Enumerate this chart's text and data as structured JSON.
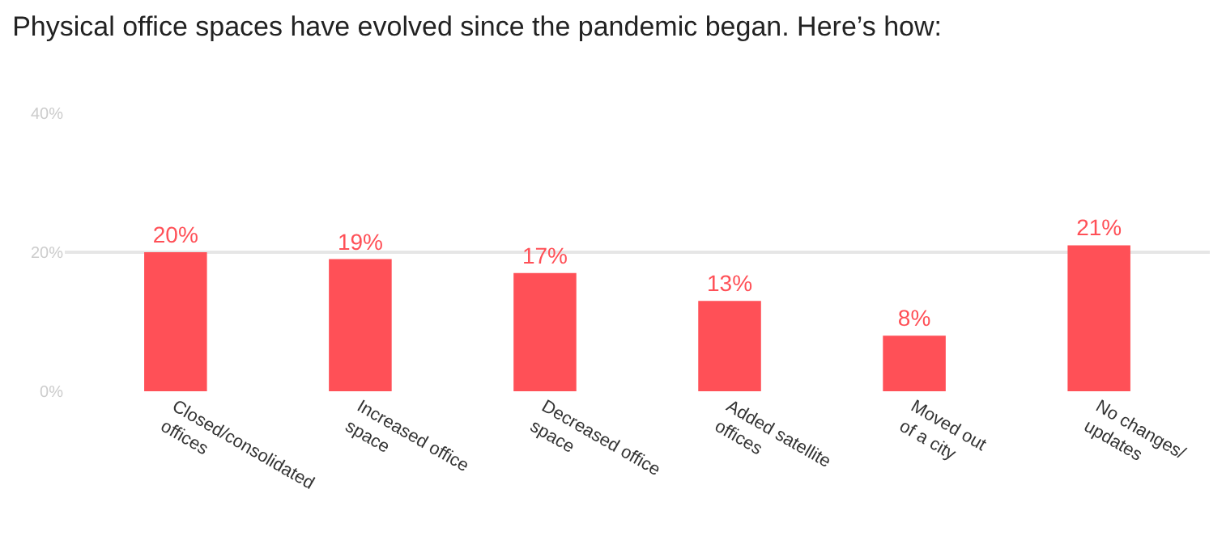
{
  "chart_data": {
    "type": "bar",
    "title": "Physical office spaces have evolved since the pandemic began. Here’s how:",
    "categories": [
      "Closed/consolidated\noffices",
      "Increased office\nspace",
      "Decreased office\nspace",
      "Added satellite\noffices",
      "Moved out\nof a city",
      "No changes/\nupdates"
    ],
    "values": [
      20,
      19,
      17,
      13,
      8,
      21
    ],
    "color": "#ff5057",
    "ylim": [
      0,
      40
    ],
    "yticks": [
      {
        "value": 0,
        "label": "0%"
      },
      {
        "value": 20,
        "label": "20%"
      },
      {
        "value": 40,
        "label": "40%"
      }
    ],
    "value_labels": [
      "20%",
      "19%",
      "17%",
      "13%",
      "8%",
      "21%"
    ],
    "grid": "y"
  }
}
